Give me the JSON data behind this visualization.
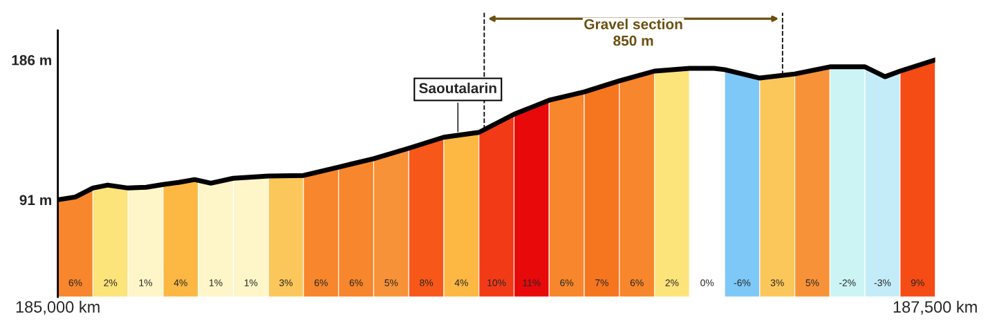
{
  "chart_data": {
    "type": "line",
    "x": [
      185000,
      185050,
      185100,
      185142,
      185200,
      185252,
      185300,
      185344,
      185390,
      185436,
      185500,
      185600,
      185700,
      185800,
      185900,
      186000,
      186100,
      186200,
      186300,
      186400,
      186500,
      186600,
      186700,
      186800,
      186870,
      186900,
      187000,
      187100,
      187200,
      187300,
      187357,
      187400,
      187500
    ],
    "series": [
      {
        "color": "#000000",
        "values": [
          91,
          92.9,
          99,
          101,
          99,
          99.5,
          101.4,
          102.8,
          104.7,
          102.3,
          105.6,
          107.1,
          107.5,
          113.2,
          118.9,
          126,
          133.5,
          136.8,
          149.1,
          158.6,
          164.3,
          171.8,
          178.4,
          180.3,
          180.3,
          179.4,
          173.7,
          176.5,
          181.3,
          181.3,
          174.6,
          178.4,
          186
        ]
      }
    ],
    "xlim": [
      185000,
      187500
    ],
    "xticks": [
      {
        "value": 185000,
        "label": "185,000 km"
      },
      {
        "value": 187500,
        "label": "187,500 km"
      }
    ],
    "ylim": [
      25,
      206
    ],
    "yticks": [
      {
        "value": 91,
        "label": "91 m"
      },
      {
        "value": 186,
        "label": "186 m"
      }
    ],
    "grid": false,
    "marker": "none",
    "line_style": "solid",
    "tick_labels": "xy",
    "bands": [
      {
        "axis": "x",
        "from": 185000,
        "to": 185100,
        "label": "6%",
        "color": "#f7862c"
      },
      {
        "axis": "x",
        "from": 185100,
        "to": 185200,
        "label": "2%",
        "color": "#fce37a"
      },
      {
        "axis": "x",
        "from": 185200,
        "to": 185300,
        "label": "1%",
        "color": "#fef5c8"
      },
      {
        "axis": "x",
        "from": 185300,
        "to": 185400,
        "label": "4%",
        "color": "#fcb843"
      },
      {
        "axis": "x",
        "from": 185400,
        "to": 185500,
        "label": "1%",
        "color": "#fef5c8"
      },
      {
        "axis": "x",
        "from": 185500,
        "to": 185600,
        "label": "1%",
        "color": "#fef5c8"
      },
      {
        "axis": "x",
        "from": 185600,
        "to": 185700,
        "label": "3%",
        "color": "#fcc75a"
      },
      {
        "axis": "x",
        "from": 185700,
        "to": 185800,
        "label": "6%",
        "color": "#f7862c"
      },
      {
        "axis": "x",
        "from": 185800,
        "to": 185900,
        "label": "6%",
        "color": "#f7862c"
      },
      {
        "axis": "x",
        "from": 185900,
        "to": 186000,
        "label": "5%",
        "color": "#f89238"
      },
      {
        "axis": "x",
        "from": 186000,
        "to": 186100,
        "label": "8%",
        "color": "#f7581a"
      },
      {
        "axis": "x",
        "from": 186100,
        "to": 186200,
        "label": "4%",
        "color": "#fcb843"
      },
      {
        "axis": "x",
        "from": 186200,
        "to": 186300,
        "label": "10%",
        "color": "#f23b16"
      },
      {
        "axis": "x",
        "from": 186300,
        "to": 186400,
        "label": "11%",
        "color": "#e8090b"
      },
      {
        "axis": "x",
        "from": 186400,
        "to": 186500,
        "label": "6%",
        "color": "#f7862c"
      },
      {
        "axis": "x",
        "from": 186500,
        "to": 186600,
        "label": "7%",
        "color": "#f6761f"
      },
      {
        "axis": "x",
        "from": 186600,
        "to": 186700,
        "label": "6%",
        "color": "#f7862c"
      },
      {
        "axis": "x",
        "from": 186700,
        "to": 186800,
        "label": "2%",
        "color": "#fce37a"
      },
      {
        "axis": "x",
        "from": 186800,
        "to": 186900,
        "label": "0%",
        "color": "#ffffff"
      },
      {
        "axis": "x",
        "from": 186900,
        "to": 187000,
        "label": "-6%",
        "color": "#7ec8f8"
      },
      {
        "axis": "x",
        "from": 187000,
        "to": 187100,
        "label": "3%",
        "color": "#fcc75a"
      },
      {
        "axis": "x",
        "from": 187100,
        "to": 187200,
        "label": "5%",
        "color": "#f89238"
      },
      {
        "axis": "x",
        "from": 187200,
        "to": 187300,
        "label": "-2%",
        "color": "#ccf4f4"
      },
      {
        "axis": "x",
        "from": 187300,
        "to": 187400,
        "label": "-3%",
        "color": "#c4ecf8"
      },
      {
        "axis": "x",
        "from": 187400,
        "to": 187500,
        "label": "9%",
        "color": "#f54b14"
      }
    ],
    "ref_lines": [
      {
        "axis": "x",
        "value": 186215,
        "color": "#000000",
        "line_style": "dashed"
      },
      {
        "axis": "x",
        "value": 187065,
        "color": "#000000",
        "line_style": "dashed"
      }
    ],
    "annotations": [
      {
        "text": "Saoutalarin",
        "x": 186140,
        "y": 136
      },
      "Gravel section\n850 m"
    ]
  }
}
